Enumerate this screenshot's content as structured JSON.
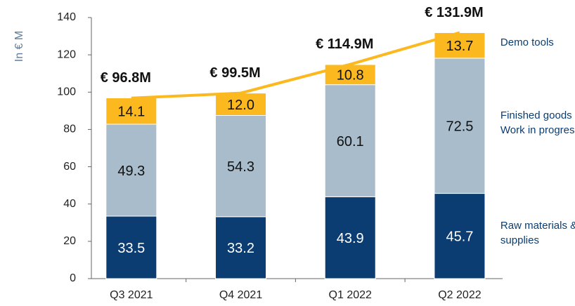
{
  "chart_data": {
    "type": "bar",
    "stacked": true,
    "y_label": "In € M",
    "categories": [
      "Q3 2021",
      "Q4 2021",
      "Q1 2022",
      "Q2 2022"
    ],
    "series": [
      {
        "name": "Raw materials & supplies",
        "color": "#0b3d72",
        "label_color": "#ffffff",
        "values": [
          33.5,
          33.2,
          43.9,
          45.7
        ],
        "value_labels": [
          "33.5",
          "33.2",
          "43.9",
          "45.7"
        ]
      },
      {
        "name": "Finished goods & Work in progress",
        "color": "#a8bccb",
        "label_color": "#111111",
        "values": [
          49.3,
          54.3,
          60.1,
          72.5
        ],
        "value_labels": [
          "49.3",
          "54.3",
          "60.1",
          "72.5"
        ]
      },
      {
        "name": "Demo tools",
        "color": "#fbb91f",
        "label_color": "#111111",
        "values": [
          14.1,
          12.0,
          10.8,
          13.7
        ],
        "value_labels": [
          "14.1",
          "12.0",
          "10.8",
          "13.7"
        ]
      }
    ],
    "totals": {
      "color": "#fbb91f",
      "values": [
        96.8,
        99.5,
        114.9,
        131.9
      ],
      "value_labels": [
        "€ 96.8M",
        "€ 99.5M",
        "€ 114.9M",
        "€ 131.9M"
      ]
    },
    "ylim": [
      0,
      140
    ],
    "yticks": [
      0,
      20,
      40,
      60,
      80,
      100,
      120,
      140
    ]
  }
}
